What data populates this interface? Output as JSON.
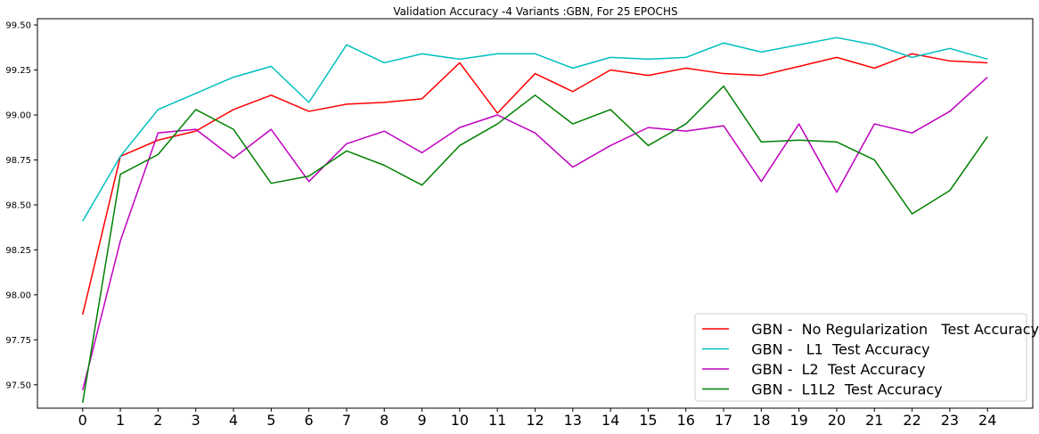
{
  "chart_data": {
    "type": "line",
    "title": "Validation Accuracy -4 Variants :GBN, For 25 EPOCHS",
    "xlabel": "",
    "ylabel": "",
    "x": [
      0,
      1,
      2,
      3,
      4,
      5,
      6,
      7,
      8,
      9,
      10,
      11,
      12,
      13,
      14,
      15,
      16,
      17,
      18,
      19,
      20,
      21,
      22,
      23,
      24
    ],
    "xlim": [
      -1.2,
      25.2
    ],
    "ylim": [
      97.37,
      99.535
    ],
    "yticks": [
      "97.50",
      "97.75",
      "98.00",
      "98.25",
      "98.50",
      "98.75",
      "99.00",
      "99.25",
      "99.50"
    ],
    "xticks": [
      "0",
      "1",
      "2",
      "3",
      "4",
      "5",
      "6",
      "7",
      "8",
      "9",
      "10",
      "11",
      "12",
      "13",
      "14",
      "15",
      "16",
      "17",
      "18",
      "19",
      "20",
      "21",
      "22",
      "23",
      "24"
    ],
    "grid": false,
    "legend_position": "lower-right",
    "series": [
      {
        "name": "GBN -  No Regularization   Test Accuracy",
        "color": "#ff0000",
        "values": [
          97.89,
          98.77,
          98.86,
          98.91,
          99.03,
          99.11,
          99.02,
          99.06,
          99.07,
          99.09,
          99.29,
          99.01,
          99.23,
          99.13,
          99.25,
          99.22,
          99.26,
          99.23,
          99.22,
          99.27,
          99.32,
          99.26,
          99.34,
          99.3,
          99.29
        ]
      },
      {
        "name": "GBN -   L1  Test Accuracy",
        "color": "#00bfbf",
        "values": [
          98.41,
          98.77,
          99.03,
          99.12,
          99.21,
          99.27,
          99.07,
          99.39,
          99.29,
          99.34,
          99.31,
          99.34,
          99.34,
          99.26,
          99.32,
          99.31,
          99.32,
          99.4,
          99.35,
          99.39,
          99.43,
          99.39,
          99.32,
          99.37,
          99.31
        ]
      },
      {
        "name": "GBN -  L2  Test Accuracy",
        "color": "#bf00bf",
        "values": [
          97.47,
          98.3,
          98.9,
          98.92,
          98.76,
          98.92,
          98.63,
          98.84,
          98.91,
          98.79,
          98.93,
          99.0,
          98.9,
          98.71,
          98.83,
          98.93,
          98.91,
          98.94,
          98.63,
          98.95,
          98.57,
          98.95,
          98.9,
          99.02,
          99.21
        ]
      },
      {
        "name": "GBN -  L1L2  Test Accuracy",
        "color": "#008000",
        "values": [
          97.4,
          98.67,
          98.78,
          99.03,
          98.92,
          98.62,
          98.66,
          98.8,
          98.72,
          98.61,
          98.83,
          98.95,
          99.11,
          98.95,
          99.03,
          98.83,
          98.95,
          99.16,
          98.85,
          98.86,
          98.85,
          98.75,
          98.45,
          98.58,
          98.88
        ]
      }
    ]
  }
}
